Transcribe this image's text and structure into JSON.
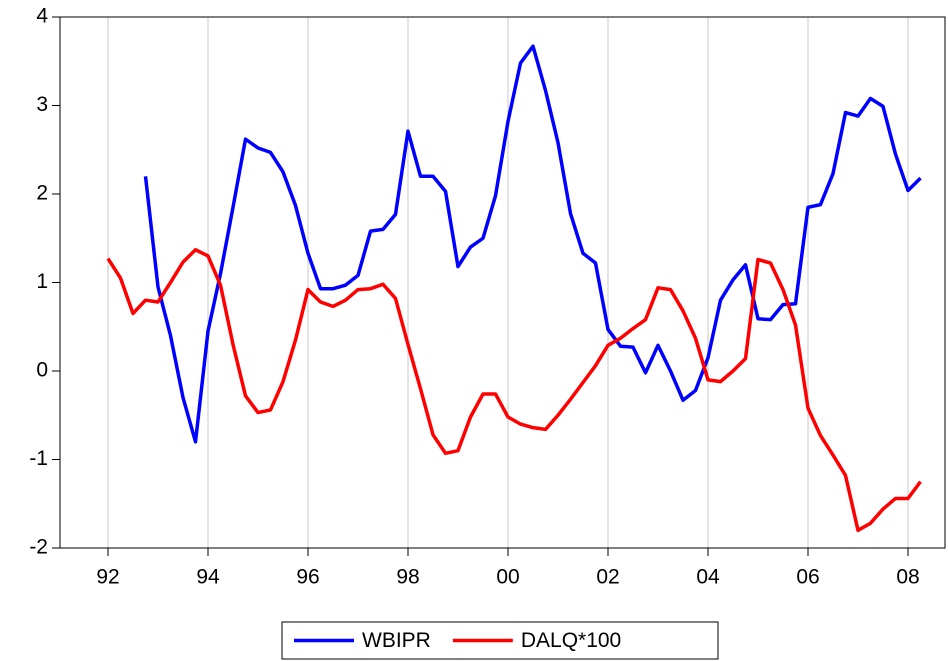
{
  "chart_data": {
    "type": "line",
    "x": [
      1992,
      1992.25,
      1992.5,
      1992.75,
      1993,
      1993.25,
      1993.5,
      1993.75,
      1994,
      1994.25,
      1994.5,
      1994.75,
      1995,
      1995.25,
      1995.5,
      1995.75,
      1996,
      1996.25,
      1996.5,
      1996.75,
      1997,
      1997.25,
      1997.5,
      1997.75,
      1998,
      1998.25,
      1998.5,
      1998.75,
      1999,
      1999.25,
      1999.5,
      1999.75,
      2000,
      2000.25,
      2000.5,
      2000.75,
      2001,
      2001.25,
      2001.5,
      2001.75,
      2002,
      2002.25,
      2002.5,
      2002.75,
      2003,
      2003.25,
      2003.5,
      2003.75,
      2004,
      2004.25,
      2004.5,
      2004.75,
      2005,
      2005.25,
      2005.5,
      2005.75,
      2006,
      2006.25,
      2006.5,
      2006.75,
      2007,
      2007.25,
      2007.5,
      2007.75,
      2008,
      2008.25
    ],
    "series": [
      {
        "name": "WBIPR",
        "color": "#0000ff",
        "values": [
          null,
          null,
          null,
          2.2,
          0.95,
          0.4,
          -0.3,
          -0.8,
          0.45,
          1.1,
          1.85,
          2.62,
          2.52,
          2.47,
          2.25,
          1.87,
          1.33,
          0.93,
          0.93,
          0.97,
          1.08,
          1.58,
          1.6,
          1.77,
          2.71,
          2.2,
          2.2,
          2.03,
          1.18,
          1.4,
          1.5,
          1.98,
          2.82,
          3.48,
          3.67,
          3.17,
          2.58,
          1.78,
          1.33,
          1.22,
          0.47,
          0.28,
          0.27,
          -0.02,
          0.29,
          0.0,
          -0.33,
          -0.22,
          0.15,
          0.8,
          1.03,
          1.2,
          0.59,
          0.58,
          0.75,
          0.76,
          1.85,
          1.88,
          2.23,
          2.92,
          2.88,
          3.08,
          2.99,
          2.45,
          2.04,
          2.18
        ]
      },
      {
        "name": "DALQ*100",
        "color": "#ff0000",
        "values": [
          1.27,
          1.05,
          0.65,
          0.8,
          0.78,
          1.0,
          1.23,
          1.37,
          1.3,
          0.97,
          0.3,
          -0.28,
          -0.47,
          -0.44,
          -0.12,
          0.35,
          0.92,
          0.78,
          0.73,
          0.8,
          0.92,
          0.93,
          0.98,
          0.82,
          0.3,
          -0.2,
          -0.72,
          -0.93,
          -0.9,
          -0.52,
          -0.26,
          -0.26,
          -0.52,
          -0.6,
          -0.64,
          -0.66,
          -0.5,
          -0.32,
          -0.13,
          0.06,
          0.29,
          0.37,
          0.48,
          0.58,
          0.94,
          0.92,
          0.68,
          0.37,
          -0.1,
          -0.12,
          0.0,
          0.14,
          1.26,
          1.22,
          0.92,
          0.52,
          -0.42,
          -0.73,
          -0.95,
          -1.18,
          -1.8,
          -1.72,
          -1.56,
          -1.44,
          -1.44,
          -1.25
        ]
      }
    ],
    "xlim": [
      1991.04,
      2008.74
    ],
    "xticks": [
      {
        "value": 1992,
        "label": "92"
      },
      {
        "value": 1994,
        "label": "94"
      },
      {
        "value": 1996,
        "label": "96"
      },
      {
        "value": 1998,
        "label": "98"
      },
      {
        "value": 2000,
        "label": "00"
      },
      {
        "value": 2002,
        "label": "02"
      },
      {
        "value": 2004,
        "label": "04"
      },
      {
        "value": 2006,
        "label": "06"
      },
      {
        "value": 2008,
        "label": "08"
      }
    ],
    "ylim": [
      -2,
      4
    ],
    "yticks": [
      -2,
      -1,
      0,
      1,
      2,
      3,
      4
    ],
    "grid": true,
    "legend": "bottom"
  }
}
